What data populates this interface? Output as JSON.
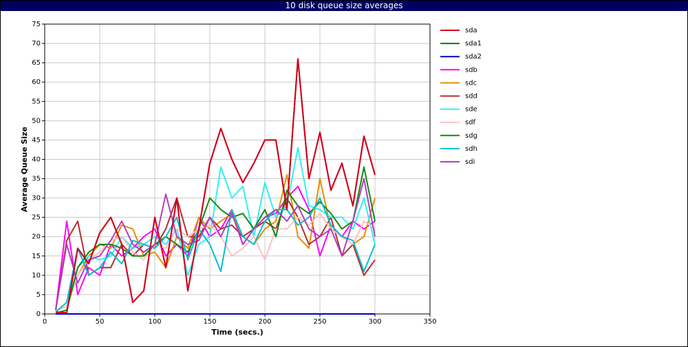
{
  "chart_data": {
    "type": "line",
    "title": "10 disk queue size averages",
    "x_label": "Time (secs.)",
    "y_label": "Average Queue Size",
    "x": [
      10,
      20,
      30,
      40,
      50,
      60,
      70,
      80,
      90,
      100,
      110,
      120,
      130,
      140,
      150,
      160,
      170,
      180,
      190,
      200,
      210,
      220,
      230,
      240,
      250,
      260,
      270,
      280,
      290,
      300
    ],
    "xlim": [
      0,
      350
    ],
    "xticks": [
      0,
      50,
      100,
      150,
      200,
      250,
      300,
      350
    ],
    "ylim": [
      0,
      75
    ],
    "yticks": [
      0,
      5,
      10,
      15,
      20,
      25,
      30,
      35,
      40,
      45,
      50,
      55,
      60,
      65,
      70,
      75
    ],
    "grid": true,
    "legend": "right",
    "series": [
      {
        "name": "sda",
        "color": "#d0001c",
        "values": [
          0.5,
          0.3,
          17,
          13,
          21,
          25,
          18,
          3,
          6,
          25,
          12,
          30,
          6,
          22,
          39,
          48,
          40,
          34,
          39,
          45,
          45,
          27,
          66,
          35,
          47,
          32,
          39,
          28,
          46,
          36
        ]
      },
      {
        "name": "sda1",
        "color": "#008000",
        "values": [
          0,
          0,
          0,
          0,
          0,
          0,
          0,
          0,
          0,
          0,
          0,
          0,
          0,
          0,
          0,
          0,
          0,
          0,
          0,
          0,
          0,
          0,
          0,
          0,
          0,
          0,
          0,
          0,
          0,
          0
        ]
      },
      {
        "name": "sda2",
        "color": "#0000c0",
        "values": [
          0,
          0,
          0,
          0,
          0,
          0,
          0,
          0,
          0,
          0,
          0,
          0,
          0,
          0,
          0,
          0,
          0,
          0,
          0,
          0,
          0,
          0,
          0,
          0,
          0,
          0,
          0,
          0,
          0,
          0
        ]
      },
      {
        "name": "sdb",
        "color": "#ff00ff",
        "values": [
          1,
          24,
          5,
          12,
          10,
          18,
          15,
          17,
          20,
          22,
          15,
          18,
          15,
          25,
          20,
          22,
          27,
          18,
          22,
          25,
          26,
          30,
          33,
          27,
          15,
          23,
          20,
          24,
          22,
          24
        ]
      },
      {
        "name": "sdc",
        "color": "#e09000",
        "values": [
          1,
          2,
          10,
          15,
          18,
          17,
          23,
          22,
          15,
          16,
          12,
          20,
          17,
          25,
          22,
          24,
          26,
          20,
          18,
          22,
          24,
          36,
          20,
          17,
          35,
          22,
          20,
          18,
          20,
          30
        ]
      },
      {
        "name": "sdd",
        "color": "#b03030",
        "values": [
          1,
          19,
          24,
          10,
          12,
          12,
          18,
          15,
          18,
          17,
          22,
          30,
          20,
          20,
          25,
          22,
          23,
          20,
          22,
          24,
          22,
          30,
          25,
          18,
          20,
          25,
          15,
          18,
          10,
          14
        ]
      },
      {
        "name": "sde",
        "color": "#30f0f0",
        "values": [
          1,
          2,
          12,
          15,
          14,
          15,
          20,
          17,
          18,
          20,
          18,
          22,
          10,
          18,
          20,
          38,
          30,
          33,
          20,
          34,
          25,
          28,
          43,
          28,
          27,
          25,
          25,
          22,
          30,
          18
        ]
      },
      {
        "name": "sdf",
        "color": "#ffc0c0",
        "values": [
          1,
          2,
          10,
          14,
          16,
          19,
          20,
          16,
          14,
          18,
          17,
          22,
          20,
          22,
          23,
          20,
          15,
          17,
          20,
          14,
          22,
          22,
          25,
          23,
          26,
          22,
          20,
          18,
          24,
          22
        ]
      },
      {
        "name": "sdg",
        "color": "#108a10",
        "values": [
          0.2,
          1,
          12,
          16,
          18,
          18,
          17,
          15,
          15,
          18,
          20,
          18,
          16,
          22,
          30,
          27,
          25,
          26,
          22,
          27,
          20,
          32,
          28,
          26,
          29,
          26,
          22,
          24,
          38,
          24
        ]
      },
      {
        "name": "sdh",
        "color": "#00c0d0",
        "values": [
          0.5,
          3,
          17,
          10,
          12,
          16,
          13,
          19,
          18,
          17,
          20,
          25,
          14,
          22,
          18,
          11,
          27,
          20,
          18,
          24,
          27,
          27,
          23,
          25,
          30,
          23,
          20,
          19,
          11,
          18
        ]
      },
      {
        "name": "sdi",
        "color": "#b040c0",
        "values": [
          1,
          18,
          8,
          14,
          15,
          19,
          24,
          18,
          16,
          18,
          31,
          20,
          18,
          19,
          25,
          20,
          26,
          18,
          22,
          25,
          27,
          24,
          28,
          22,
          20,
          22,
          15,
          24,
          35,
          20
        ]
      }
    ]
  }
}
